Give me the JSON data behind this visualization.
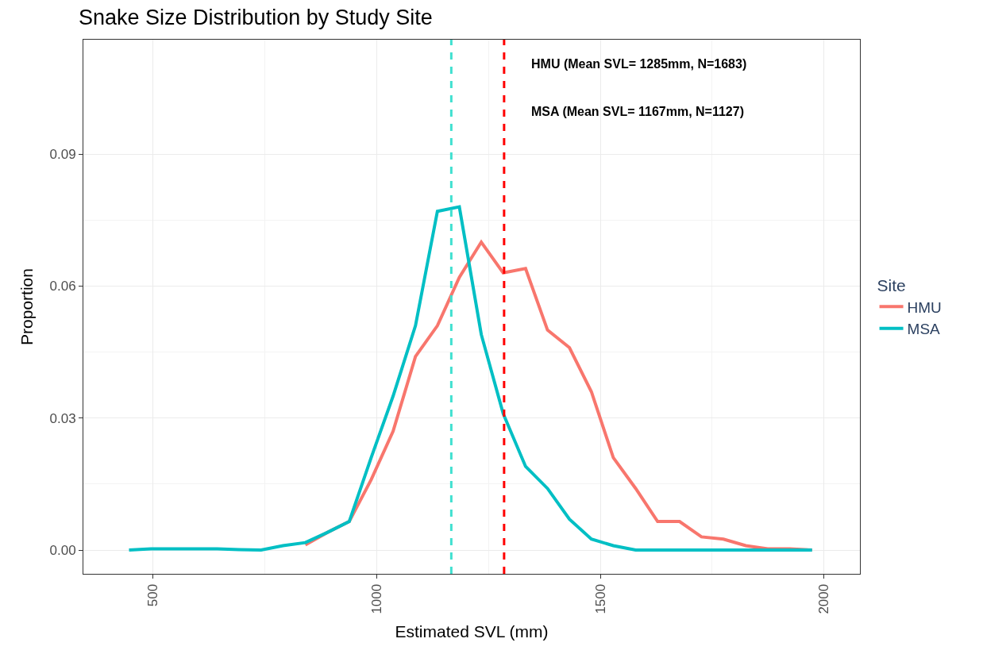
{
  "chart_data": {
    "type": "line",
    "title": "Snake Size Distribution by Study Site",
    "xlabel": "Estimated SVL (mm)",
    "ylabel": "Proportion",
    "legend_title": "Site",
    "x": [
      447,
      496,
      545,
      595,
      644,
      693,
      742,
      791,
      841,
      890,
      939,
      988,
      1037,
      1087,
      1136,
      1185,
      1234,
      1283,
      1333,
      1382,
      1431,
      1480,
      1529,
      1579,
      1628,
      1677,
      1726,
      1775,
      1825,
      1874,
      1923,
      1973
    ],
    "series": [
      {
        "name": "HMU",
        "color": "#f8766d",
        "values": [
          null,
          null,
          null,
          null,
          null,
          null,
          null,
          null,
          0.0012,
          0.004,
          0.0065,
          0.016,
          0.027,
          0.044,
          0.051,
          0.062,
          0.07,
          0.063,
          0.064,
          0.05,
          0.046,
          0.036,
          0.021,
          0.014,
          0.0065,
          0.0065,
          0.003,
          0.0025,
          0.001,
          0.0003,
          0.0003,
          0
        ]
      },
      {
        "name": "MSA",
        "color": "#00bfc4",
        "values": [
          0,
          0.0003,
          0.0003,
          0.0003,
          0.0003,
          0.0001,
          0,
          0.001,
          0.0017,
          0.004,
          0.0065,
          0.021,
          0.035,
          0.051,
          0.077,
          0.078,
          0.049,
          0.031,
          0.019,
          0.014,
          0.007,
          0.0025,
          0.001,
          0,
          0,
          0,
          0,
          0,
          0,
          0,
          0,
          0
        ]
      }
    ],
    "ref_lines": [
      {
        "axis": "x",
        "value": 1285,
        "color": "#ff0000",
        "line_style": "dashed"
      },
      {
        "axis": "x",
        "value": 1167,
        "color": "#40e0d0",
        "line_style": "dashed"
      }
    ],
    "annotations": [
      "HMU (Mean SVL= 1285mm, N=1683)",
      "MSA (Mean SVL= 1167mm, N=1127)"
    ],
    "xlim": [
      345,
      2080
    ],
    "xticks": [
      500,
      1000,
      1500,
      2000
    ],
    "ylim": [
      -0.0054,
      0.116
    ],
    "yticks": [
      {
        "value": 0,
        "label": "0.00"
      },
      {
        "value": 0.03,
        "label": "0.03"
      },
      {
        "value": 0.06,
        "label": "0.06"
      },
      {
        "value": 0.09,
        "label": "0.09"
      }
    ],
    "grid": true,
    "legend": "right",
    "marker": "none",
    "line_style": "solid"
  }
}
